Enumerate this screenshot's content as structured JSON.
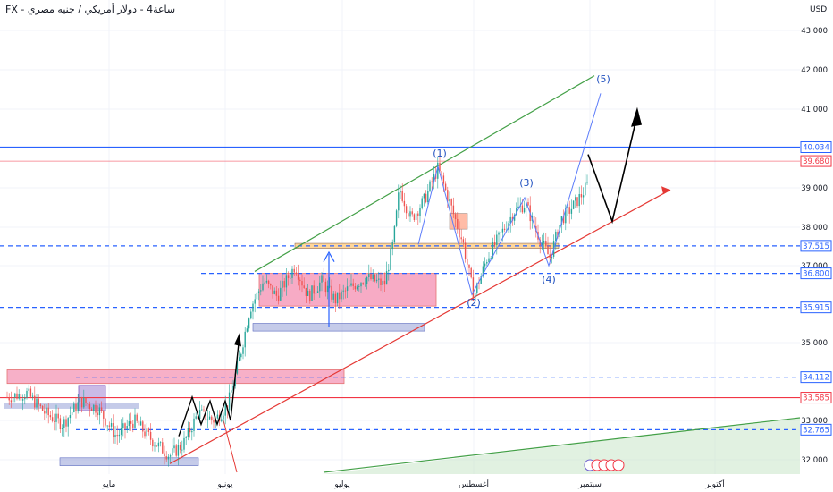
{
  "header": {
    "title": "FX - ساعة4 - دولار أمريكي / جنيه مصري",
    "currency": "USD"
  },
  "colors": {
    "grid": "#f0f3fa",
    "up": "#26a69a",
    "down": "#ef5350",
    "blue_line": "#2962ff",
    "red_line": "#e53935",
    "green_line": "#43a047",
    "zone_pink": "#f48fb1",
    "zone_blue": "#9fa8da",
    "badge_blue": "#2962ff",
    "badge_red": "#f23645"
  },
  "chart_data": {
    "type": "candlestick",
    "title": "FX - ساعة4 - دولار أمريكي / جنيه مصري",
    "ylabel": "USD",
    "ylim": [
      31.6,
      43.3
    ],
    "y_ticks": [
      "32.000",
      "33.000",
      "35.000",
      "37.000",
      "38.000",
      "39.000",
      "41.000",
      "42.000",
      "43.000"
    ],
    "x_ticks": [
      "مايو",
      "يونيو",
      "يوليو",
      "أغسطس",
      "سبتمبر",
      "أكتوبر"
    ],
    "price_levels": [
      {
        "value": 40.034,
        "label": "40.034",
        "style": "solid",
        "color": "#2962ff"
      },
      {
        "value": 39.68,
        "label": "39.680",
        "style": "solid-thin",
        "color": "#f23645"
      },
      {
        "value": 37.515,
        "label": "37.515",
        "style": "dashed",
        "color": "#2962ff"
      },
      {
        "value": 36.8,
        "label": "36.800",
        "style": "dashed",
        "color": "#2962ff"
      },
      {
        "value": 35.915,
        "label": "35.915",
        "style": "dashed",
        "color": "#2962ff"
      },
      {
        "value": 34.112,
        "label": "34.112",
        "style": "dashed",
        "color": "#2962ff"
      },
      {
        "value": 33.585,
        "label": "33.585",
        "style": "solid",
        "color": "#f23645"
      },
      {
        "value": 32.765,
        "label": "32.765",
        "style": "dashed",
        "color": "#2962ff"
      }
    ],
    "wave_labels": [
      "(1)",
      "(2)",
      "(3)",
      "(4)",
      "(5)"
    ],
    "price_path": [
      [
        0,
        34.1
      ],
      [
        8,
        33.6
      ],
      [
        30,
        33.7
      ],
      [
        50,
        33.2
      ],
      [
        70,
        32.9
      ],
      [
        90,
        33.5
      ],
      [
        110,
        33.3
      ],
      [
        130,
        32.6
      ],
      [
        150,
        33.0
      ],
      [
        170,
        32.5
      ],
      [
        190,
        32.1
      ],
      [
        205,
        32.4
      ],
      [
        222,
        33.2
      ],
      [
        240,
        33.0
      ],
      [
        255,
        33.4
      ],
      [
        268,
        34.6
      ],
      [
        280,
        35.9
      ],
      [
        295,
        36.6
      ],
      [
        310,
        36.2
      ],
      [
        330,
        37.0
      ],
      [
        345,
        36.2
      ],
      [
        360,
        36.6
      ],
      [
        375,
        36.1
      ],
      [
        390,
        36.4
      ],
      [
        410,
        36.7
      ],
      [
        430,
        36.5
      ],
      [
        440,
        37.6
      ],
      [
        447,
        39.0
      ],
      [
        460,
        38.2
      ],
      [
        475,
        38.7
      ],
      [
        490,
        39.5
      ],
      [
        505,
        38.5
      ],
      [
        518,
        37.6
      ],
      [
        530,
        36.2
      ],
      [
        545,
        37.2
      ],
      [
        560,
        37.8
      ],
      [
        575,
        38.4
      ],
      [
        588,
        38.6
      ],
      [
        600,
        37.9
      ],
      [
        615,
        37.2
      ],
      [
        628,
        38.2
      ],
      [
        640,
        38.5
      ],
      [
        650,
        38.8
      ],
      [
        658,
        39.1
      ]
    ]
  }
}
